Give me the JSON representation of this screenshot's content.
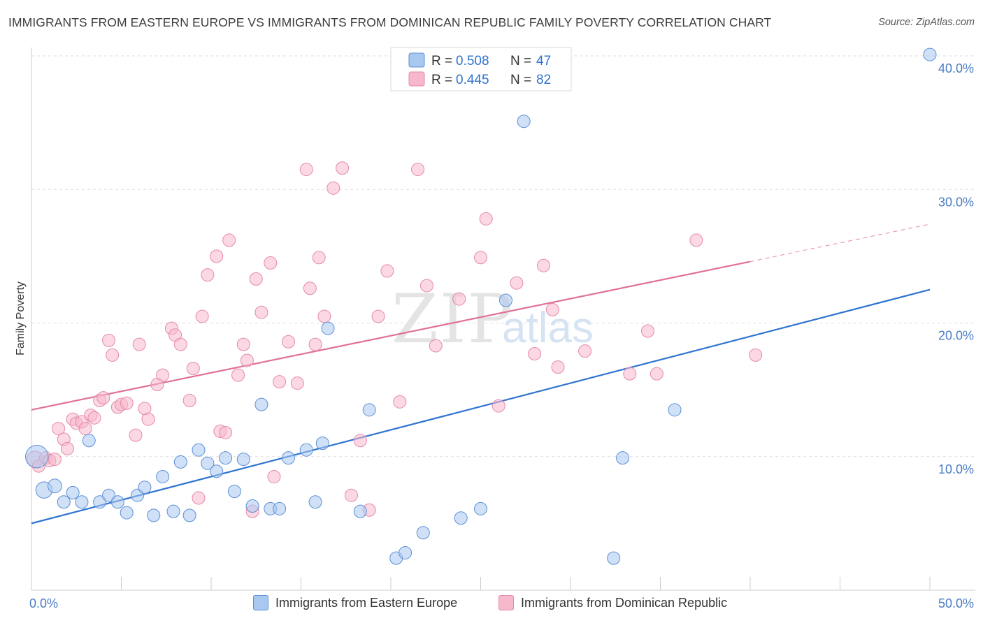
{
  "header": {
    "title": "IMMIGRANTS FROM EASTERN EUROPE VS IMMIGRANTS FROM DOMINICAN REPUBLIC FAMILY POVERTY CORRELATION CHART",
    "source": "Source: ZipAtlas.com"
  },
  "watermark": {
    "zip": "ZIP",
    "atlas": "atlas"
  },
  "colors": {
    "blue_fill": "#a9c8f0",
    "blue_stroke": "#5b8fd6",
    "blue_line": "#2f74d0",
    "pink_fill": "#f7b8cc",
    "pink_stroke": "#e58aa8",
    "pink_line": "#e0709a",
    "axis_label": "#4a7cc4",
    "grid": "#dddddd"
  },
  "legend_top": {
    "rows": [
      {
        "r_label": "R = ",
        "r_value": "0.508",
        "n_label": "N = ",
        "n_value": "47"
      },
      {
        "r_label": "R = ",
        "r_value": "0.445",
        "n_label": "N = ",
        "n_value": "82"
      }
    ]
  },
  "legend_bottom": {
    "items": [
      {
        "label": "Immigrants from Eastern Europe"
      },
      {
        "label": "Immigrants from Dominican Republic"
      }
    ]
  },
  "chart_data": {
    "type": "scatter",
    "title": "IMMIGRANTS FROM EASTERN EUROPE VS IMMIGRANTS FROM DOMINICAN REPUBLIC FAMILY POVERTY CORRELATION CHART",
    "xlabel": "",
    "ylabel": "Family Poverty",
    "xlim": [
      0,
      50
    ],
    "ylim": [
      0,
      40
    ],
    "x_tick_labels": [
      {
        "value": 0,
        "label": "0.0%"
      },
      {
        "value": 50,
        "label": "50.0%"
      }
    ],
    "y_tick_labels": [
      {
        "value": 10,
        "label": "10.0%"
      },
      {
        "value": 20,
        "label": "20.0%"
      },
      {
        "value": 30,
        "label": "30.0%"
      },
      {
        "value": 40,
        "label": "40.0%"
      }
    ],
    "series": [
      {
        "name": "Immigrants from Eastern Europe",
        "r": 0.508,
        "n": 47,
        "trend": {
          "x0": 0,
          "y0": 5.0,
          "x1": 50,
          "y1": 22.5
        },
        "points": [
          [
            0.3,
            10.0,
            1.8
          ],
          [
            0.7,
            7.5,
            1.3
          ],
          [
            1.3,
            7.8,
            1.1
          ],
          [
            1.8,
            6.6,
            1
          ],
          [
            2.3,
            7.3,
            1
          ],
          [
            2.8,
            6.6,
            1
          ],
          [
            3.2,
            11.2,
            1
          ],
          [
            3.8,
            6.6,
            1
          ],
          [
            4.3,
            7.1,
            1
          ],
          [
            4.8,
            6.6,
            1
          ],
          [
            5.3,
            5.8,
            1
          ],
          [
            5.9,
            7.1,
            1
          ],
          [
            6.3,
            7.7,
            1
          ],
          [
            6.8,
            5.6,
            1
          ],
          [
            7.3,
            8.5,
            1
          ],
          [
            7.9,
            5.9,
            1
          ],
          [
            8.3,
            9.6,
            1
          ],
          [
            8.8,
            5.6,
            1
          ],
          [
            9.3,
            10.5,
            1
          ],
          [
            9.8,
            9.5,
            1
          ],
          [
            10.3,
            8.9,
            1
          ],
          [
            10.8,
            9.9,
            1
          ],
          [
            11.3,
            7.4,
            1
          ],
          [
            11.8,
            9.8,
            1
          ],
          [
            12.3,
            6.3,
            1
          ],
          [
            12.8,
            13.9,
            1
          ],
          [
            13.3,
            6.1,
            1
          ],
          [
            13.8,
            6.1,
            1
          ],
          [
            14.3,
            9.9,
            1
          ],
          [
            15.3,
            10.5,
            1
          ],
          [
            15.8,
            6.6,
            1
          ],
          [
            16.2,
            11.0,
            1
          ],
          [
            16.5,
            19.6,
            1
          ],
          [
            18.3,
            5.9,
            1
          ],
          [
            18.8,
            13.5,
            1
          ],
          [
            20.3,
            2.4,
            1
          ],
          [
            20.8,
            2.8,
            1
          ],
          [
            21.8,
            4.3,
            1
          ],
          [
            23.9,
            5.4,
            1
          ],
          [
            25.0,
            6.1,
            1
          ],
          [
            26.4,
            21.7,
            1
          ],
          [
            27.4,
            35.1,
            1
          ],
          [
            32.4,
            2.4,
            1
          ],
          [
            32.9,
            9.9,
            1
          ],
          [
            35.8,
            13.5,
            1
          ],
          [
            50.0,
            40.1,
            1
          ]
        ]
      },
      {
        "name": "Immigrants from Dominican Republic",
        "r": 0.445,
        "n": 82,
        "trend": {
          "x0": 0,
          "y0": 13.5,
          "x1": 40,
          "y1": 24.6
        },
        "trend_dashed": {
          "x0": 40,
          "y0": 24.6,
          "x1": 50,
          "y1": 27.4
        },
        "points": [
          [
            0.2,
            9.8,
            1.3
          ],
          [
            0.4,
            9.3,
            1
          ],
          [
            0.8,
            9.9,
            1
          ],
          [
            1.0,
            9.7,
            1
          ],
          [
            1.3,
            9.8,
            1
          ],
          [
            1.5,
            12.1,
            1
          ],
          [
            1.8,
            11.3,
            1
          ],
          [
            2.0,
            10.6,
            1
          ],
          [
            2.3,
            12.8,
            1
          ],
          [
            2.5,
            12.5,
            1
          ],
          [
            2.8,
            12.6,
            1
          ],
          [
            3.0,
            12.1,
            1
          ],
          [
            3.3,
            13.1,
            1
          ],
          [
            3.5,
            12.9,
            1
          ],
          [
            3.8,
            14.2,
            1
          ],
          [
            4.0,
            14.4,
            1
          ],
          [
            4.3,
            18.7,
            1
          ],
          [
            4.5,
            17.6,
            1
          ],
          [
            4.8,
            13.7,
            1
          ],
          [
            5.0,
            13.9,
            1
          ],
          [
            5.3,
            14.0,
            1
          ],
          [
            5.8,
            11.6,
            1
          ],
          [
            6.0,
            18.4,
            1
          ],
          [
            6.3,
            13.6,
            1
          ],
          [
            6.5,
            12.8,
            1
          ],
          [
            7.0,
            15.4,
            1
          ],
          [
            7.3,
            16.1,
            1
          ],
          [
            7.8,
            19.6,
            1
          ],
          [
            8.0,
            19.1,
            1
          ],
          [
            8.3,
            18.4,
            1
          ],
          [
            8.8,
            14.2,
            1
          ],
          [
            9.0,
            16.6,
            1
          ],
          [
            9.3,
            6.9,
            1
          ],
          [
            9.5,
            20.5,
            1
          ],
          [
            9.8,
            23.6,
            1
          ],
          [
            10.3,
            25.0,
            1
          ],
          [
            10.5,
            11.9,
            1
          ],
          [
            10.8,
            11.8,
            1
          ],
          [
            11.0,
            26.2,
            1
          ],
          [
            11.5,
            16.1,
            1
          ],
          [
            11.8,
            18.4,
            1
          ],
          [
            12.0,
            17.2,
            1
          ],
          [
            12.3,
            5.9,
            1
          ],
          [
            12.5,
            23.3,
            1
          ],
          [
            12.8,
            20.8,
            1
          ],
          [
            13.3,
            24.5,
            1
          ],
          [
            13.5,
            8.5,
            1
          ],
          [
            13.8,
            15.6,
            1
          ],
          [
            14.3,
            18.6,
            1
          ],
          [
            14.8,
            15.5,
            1
          ],
          [
            15.3,
            31.5,
            1
          ],
          [
            15.5,
            22.6,
            1
          ],
          [
            15.8,
            18.4,
            1
          ],
          [
            16.0,
            24.9,
            1
          ],
          [
            16.3,
            20.5,
            1
          ],
          [
            16.8,
            30.1,
            1
          ],
          [
            17.3,
            31.6,
            1
          ],
          [
            17.8,
            7.1,
            1
          ],
          [
            18.3,
            11.2,
            1
          ],
          [
            18.8,
            6.0,
            1
          ],
          [
            19.3,
            20.5,
            1
          ],
          [
            19.8,
            23.9,
            1
          ],
          [
            20.5,
            14.1,
            1
          ],
          [
            21.5,
            31.5,
            1
          ],
          [
            22.0,
            22.8,
            1
          ],
          [
            22.5,
            18.3,
            1
          ],
          [
            23.8,
            21.8,
            1
          ],
          [
            25.0,
            24.9,
            1
          ],
          [
            25.3,
            27.8,
            1
          ],
          [
            26.0,
            13.8,
            1
          ],
          [
            27.0,
            23.0,
            1
          ],
          [
            28.0,
            17.7,
            1
          ],
          [
            28.5,
            24.3,
            1
          ],
          [
            29.0,
            21.0,
            1
          ],
          [
            29.3,
            16.7,
            1
          ],
          [
            30.8,
            17.9,
            1
          ],
          [
            33.3,
            16.2,
            1
          ],
          [
            34.3,
            19.4,
            1
          ],
          [
            34.8,
            16.2,
            1
          ],
          [
            37.0,
            26.2,
            1
          ],
          [
            40.3,
            17.6,
            1
          ]
        ]
      }
    ]
  }
}
